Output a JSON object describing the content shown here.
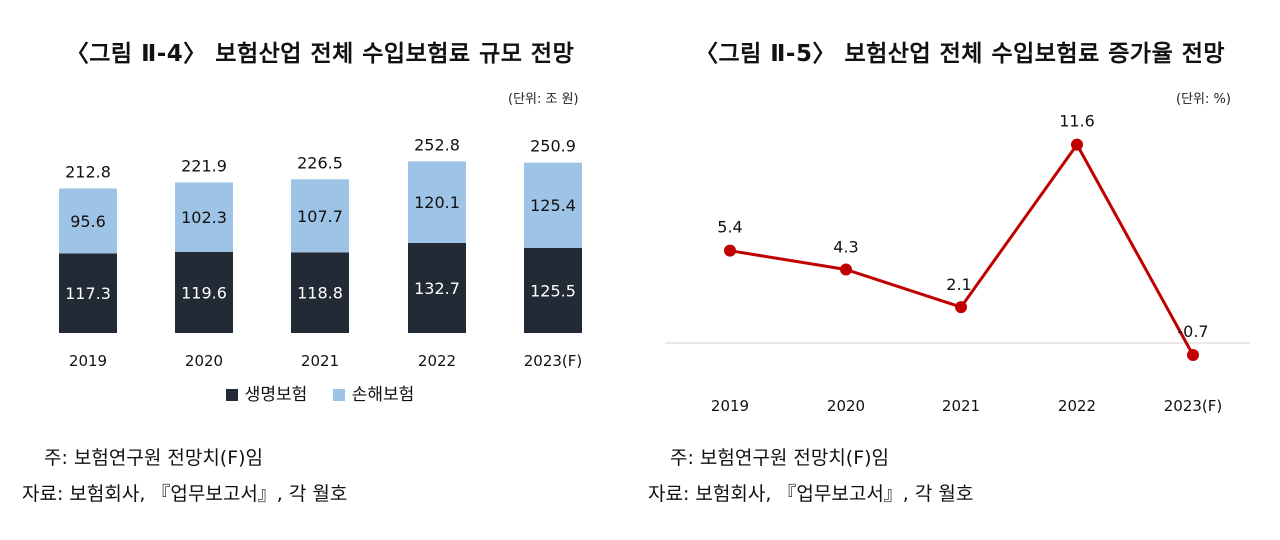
{
  "left_panel": {
    "title": "〈그림 Ⅱ-4〉 보험산업 전체 수입보험료 규모 전망",
    "unit": "(단위: 조 원)",
    "note": "주: 보험연구원 전망치(F)임",
    "source": "자료: 보험회사, 『업무보고서』, 각 월호"
  },
  "right_panel": {
    "title": "〈그림 Ⅱ-5〉 보험산업 전체 수입보험료 증가율 전망",
    "unit": "(단위: %)",
    "note": "주: 보험연구원 전망치(F)임",
    "source": "자료: 보험회사, 『업무보고서』, 각 월호"
  },
  "chart_data": [
    {
      "type": "bar",
      "stacked": true,
      "title": "〈그림 Ⅱ-4〉 보험산업 전체 수입보험료 규모 전망",
      "categories": [
        "2019",
        "2020",
        "2021",
        "2022",
        "2023(F)"
      ],
      "series": [
        {
          "name": "생명보험",
          "values": [
            117.3,
            119.6,
            118.8,
            132.7,
            125.5
          ],
          "color": "#222a35"
        },
        {
          "name": "손해보험",
          "values": [
            95.6,
            102.3,
            107.7,
            120.1,
            125.4
          ],
          "color": "#9dc3e6"
        }
      ],
      "totals": [
        212.8,
        221.9,
        226.5,
        252.8,
        250.9
      ],
      "ylim": [
        0,
        300
      ],
      "grid": false,
      "legend": "bottom"
    },
    {
      "type": "line",
      "title": "〈그림 Ⅱ-5〉 보험산업 전체 수입보험료 증가율 전망",
      "categories": [
        "2019",
        "2020",
        "2021",
        "2022",
        "2023(F)"
      ],
      "values": [
        5.4,
        4.3,
        2.1,
        11.6,
        -0.7
      ],
      "color": "#c00000",
      "ylim": [
        -1,
        13
      ],
      "grid": false
    }
  ]
}
